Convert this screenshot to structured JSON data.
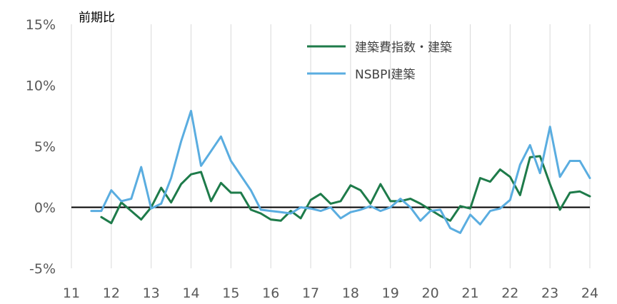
{
  "chart_data": {
    "type": "line",
    "ylabel": "前期比",
    "ylim": [
      -5,
      15
    ],
    "yticks": [
      -5,
      0,
      5,
      10,
      15
    ],
    "ytick_labels": [
      "-5%",
      "0%",
      "5%",
      "10%",
      "15%"
    ],
    "xlim": [
      11,
      24
    ],
    "xticks": [
      11,
      12,
      13,
      14,
      15,
      16,
      17,
      18,
      19,
      20,
      21,
      22,
      23,
      24
    ],
    "xtick_labels": [
      "11",
      "12",
      "13",
      "14",
      "15",
      "16",
      "17",
      "18",
      "19",
      "20",
      "21",
      "22",
      "23",
      "24"
    ],
    "grid": "vertical",
    "legend_position": "top-center",
    "series": [
      {
        "name": "建築費指数・建築",
        "color": "#1e7b4a",
        "x": [
          11.75,
          12.0,
          12.25,
          12.5,
          12.75,
          13.0,
          13.25,
          13.5,
          13.75,
          14.0,
          14.25,
          14.5,
          14.75,
          15.0,
          15.25,
          15.5,
          15.75,
          16.0,
          16.25,
          16.5,
          16.75,
          17.0,
          17.25,
          17.5,
          17.75,
          18.0,
          18.25,
          18.5,
          18.75,
          19.0,
          19.25,
          19.5,
          19.75,
          20.0,
          20.25,
          20.5,
          20.75,
          21.0,
          21.25,
          21.5,
          21.75,
          22.0,
          22.25,
          22.5,
          22.75,
          23.0,
          23.25,
          23.5,
          23.75,
          24.0
        ],
        "values": [
          -0.8,
          -1.3,
          0.4,
          -0.3,
          -1.0,
          0.0,
          1.6,
          0.4,
          1.9,
          2.7,
          2.9,
          0.5,
          2.0,
          1.2,
          1.2,
          -0.2,
          -0.5,
          -1.0,
          -1.1,
          -0.3,
          -0.9,
          0.6,
          1.1,
          0.3,
          0.5,
          1.8,
          1.4,
          0.3,
          1.9,
          0.5,
          0.5,
          0.7,
          0.3,
          -0.2,
          -0.7,
          -1.1,
          0.1,
          -0.1,
          2.4,
          2.1,
          3.1,
          2.5,
          1.0,
          4.1,
          4.2,
          1.9,
          -0.2,
          1.2,
          1.3,
          0.9
        ]
      },
      {
        "name": "NSBPI建築",
        "color": "#5aade0",
        "x": [
          11.5,
          11.75,
          12.0,
          12.25,
          12.5,
          12.75,
          13.0,
          13.25,
          13.5,
          13.75,
          14.0,
          14.25,
          14.5,
          14.75,
          15.0,
          15.25,
          15.5,
          15.75,
          16.0,
          16.25,
          16.5,
          16.75,
          17.0,
          17.25,
          17.5,
          17.75,
          18.0,
          18.25,
          18.5,
          18.75,
          19.0,
          19.25,
          19.5,
          19.75,
          20.0,
          20.25,
          20.5,
          20.75,
          21.0,
          21.25,
          21.5,
          21.75,
          22.0,
          22.25,
          22.5,
          22.75,
          23.0,
          23.25,
          23.5,
          23.75,
          24.0
        ],
        "values": [
          -0.3,
          -0.3,
          1.4,
          0.5,
          0.7,
          3.3,
          -0.1,
          0.3,
          2.4,
          5.4,
          7.9,
          3.4,
          4.6,
          5.8,
          3.8,
          2.6,
          1.4,
          -0.2,
          -0.3,
          -0.4,
          -0.5,
          0.0,
          -0.1,
          -0.3,
          0.0,
          -0.9,
          -0.4,
          -0.2,
          0.1,
          -0.3,
          0.0,
          0.7,
          0.0,
          -1.1,
          -0.3,
          -0.2,
          -1.7,
          -2.1,
          -0.6,
          -1.4,
          -0.3,
          -0.1,
          0.6,
          3.5,
          5.1,
          2.8,
          6.6,
          2.5,
          3.8,
          3.8,
          2.4
        ]
      }
    ]
  }
}
